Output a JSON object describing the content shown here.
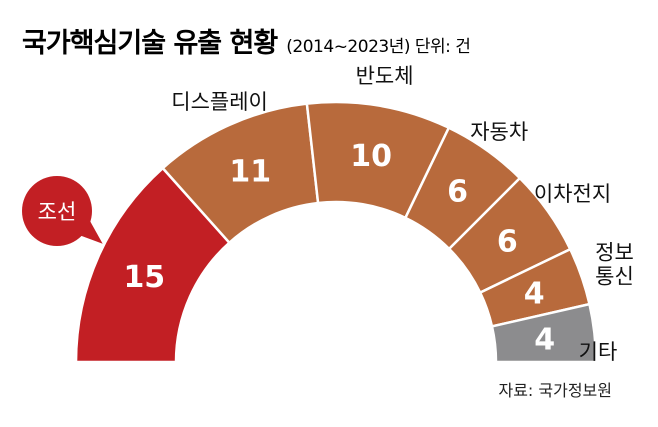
{
  "title": "국가핵심기술 유출 현황",
  "subtitle": "(2014~2023년) 단위: 건",
  "source": "자료: 국가정보원",
  "colors": {
    "highlight": "#C21F24",
    "default": "#B86A3C",
    "other": "#8C8C8E"
  },
  "chart_data": {
    "type": "pie",
    "shape": "semicircle-donut",
    "categories": [
      "조선",
      "디스플레이",
      "반도체",
      "자동차",
      "이차전지",
      "정보통신",
      "기타"
    ],
    "label_lines": [
      [
        "조선"
      ],
      [
        "디스플레이"
      ],
      [
        "반도체"
      ],
      [
        "자동차"
      ],
      [
        "이차전지"
      ],
      [
        "정보",
        "통신"
      ],
      [
        "기타"
      ]
    ],
    "values": [
      15,
      11,
      10,
      6,
      6,
      4,
      4
    ],
    "highlight_index": 0,
    "other_index": 6,
    "unit": "건"
  }
}
